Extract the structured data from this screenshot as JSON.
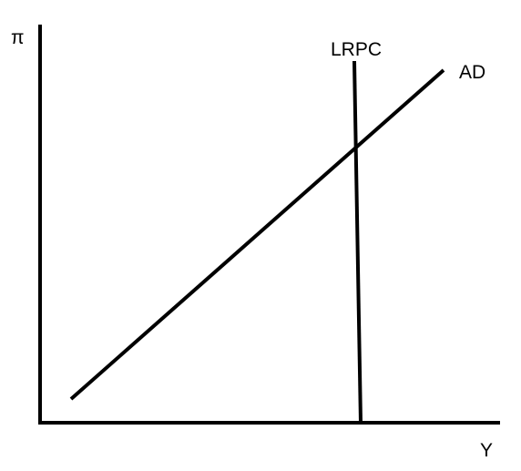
{
  "diagram": {
    "axes": {
      "y_label": "π",
      "x_label": "Y"
    },
    "curves": {
      "lrpc_label": "LRPC",
      "ad_label": "AD"
    },
    "colors": {
      "line": "#000000",
      "background": "#ffffff"
    }
  }
}
